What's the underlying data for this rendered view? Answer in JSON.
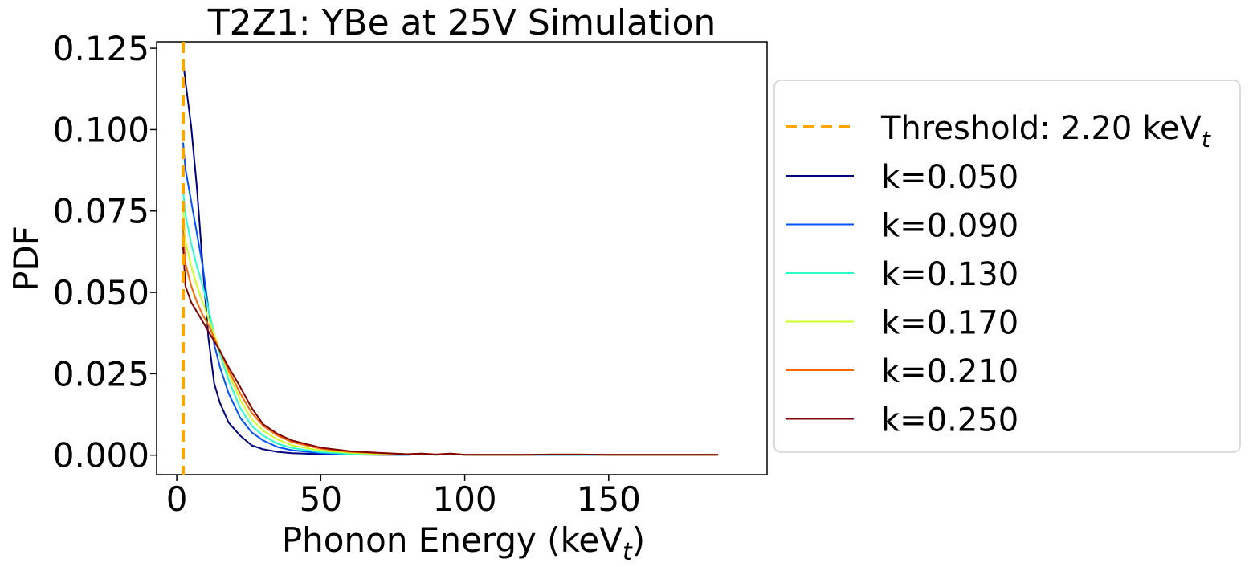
{
  "chart_data": {
    "type": "line",
    "title": "T2Z1: YBe at 25V Simulation",
    "xlabel_main": "Phonon Energy (keV",
    "xlabel_sub": "t",
    "xlabel_end": ")",
    "ylabel": "PDF",
    "xlim": [
      -7,
      205
    ],
    "ylim": [
      -0.006,
      0.127
    ],
    "xticks": [
      0,
      50,
      100,
      150
    ],
    "xtick_labels": [
      "0",
      "50",
      "100",
      "150"
    ],
    "yticks": [
      0.0,
      0.025,
      0.05,
      0.075,
      0.1,
      0.125
    ],
    "ytick_labels": [
      "0.000",
      "0.025",
      "0.050",
      "0.075",
      "0.100",
      "0.125"
    ],
    "grid": false,
    "legend_placement": "outside-right",
    "threshold": {
      "x": 2.2,
      "color": "#ffa500",
      "label_main": "Threshold: 2.20 keV",
      "label_sub": "t",
      "style": "dashed"
    },
    "series": [
      {
        "name": "k=0.050",
        "color": "#00007f",
        "x": [
          2.2,
          3,
          5,
          7,
          9,
          11,
          13,
          15,
          18,
          22,
          26,
          30,
          35,
          40,
          50,
          60,
          70,
          80,
          85,
          90,
          95,
          100,
          110,
          120,
          130,
          140,
          150,
          160,
          170,
          180,
          188
        ],
        "y": [
          0.121,
          0.115,
          0.101,
          0.082,
          0.058,
          0.036,
          0.022,
          0.016,
          0.01,
          0.006,
          0.003,
          0.0018,
          0.001,
          0.0006,
          0.0003,
          0.0002,
          0.0001,
          0.0001,
          0.0004,
          0.0001,
          0.0004,
          0.0001,
          0.0001,
          0.0001,
          0.0001,
          0.0001,
          0.0001,
          0.0001,
          0.0001,
          0.0001,
          0.0001
        ]
      },
      {
        "name": "k=0.090",
        "color": "#0051ff",
        "x": [
          2.2,
          3,
          5,
          7,
          9,
          11,
          13,
          15,
          18,
          22,
          26,
          30,
          35,
          40,
          50,
          60,
          70,
          80,
          85,
          90,
          95,
          100,
          110,
          120,
          130,
          140,
          150,
          160,
          170,
          180,
          188
        ],
        "y": [
          0.096,
          0.088,
          0.078,
          0.068,
          0.058,
          0.045,
          0.034,
          0.027,
          0.019,
          0.0115,
          0.007,
          0.0045,
          0.0025,
          0.0015,
          0.0006,
          0.0003,
          0.0002,
          0.0001,
          0.0004,
          0.0001,
          0.0004,
          0.0001,
          0.0001,
          0.0001,
          0.0001,
          0.0001,
          0.0001,
          0.0001,
          0.0001,
          0.0001,
          0.0001
        ]
      },
      {
        "name": "k=0.130",
        "color": "#29ffce",
        "x": [
          2.2,
          3,
          5,
          7,
          9,
          11,
          13,
          15,
          18,
          22,
          26,
          30,
          35,
          40,
          50,
          60,
          70,
          80,
          85,
          90,
          95,
          100,
          110,
          120,
          130,
          140,
          150,
          160,
          170,
          180,
          188
        ],
        "y": [
          0.081,
          0.074,
          0.065,
          0.058,
          0.052,
          0.045,
          0.037,
          0.031,
          0.023,
          0.0145,
          0.009,
          0.006,
          0.0035,
          0.0022,
          0.0009,
          0.0004,
          0.0002,
          0.0001,
          0.0004,
          0.0001,
          0.0004,
          0.0001,
          0.0001,
          0.0001,
          0.0001,
          0.0001,
          0.0001,
          0.0001,
          0.0001,
          0.0001,
          0.0001
        ]
      },
      {
        "name": "k=0.170",
        "color": "#ceff29",
        "x": [
          2.2,
          3,
          5,
          7,
          9,
          11,
          13,
          15,
          18,
          22,
          26,
          30,
          35,
          40,
          50,
          60,
          70,
          80,
          85,
          90,
          95,
          100,
          110,
          120,
          130,
          140,
          150,
          160,
          170,
          180,
          188
        ],
        "y": [
          0.075,
          0.066,
          0.058,
          0.052,
          0.047,
          0.042,
          0.037,
          0.032,
          0.025,
          0.017,
          0.011,
          0.0075,
          0.0048,
          0.003,
          0.0014,
          0.0007,
          0.0004,
          0.0002,
          0.0005,
          0.0001,
          0.0005,
          0.0001,
          0.0001,
          0.0001,
          0.0002,
          0.0002,
          0.0001,
          0.0001,
          0.0001,
          0.0001,
          0.0001
        ]
      },
      {
        "name": "k=0.210",
        "color": "#ff6800",
        "x": [
          2.2,
          3,
          5,
          7,
          9,
          11,
          13,
          15,
          18,
          22,
          26,
          30,
          35,
          40,
          50,
          60,
          70,
          80,
          85,
          90,
          95,
          100,
          110,
          120,
          130,
          140,
          150,
          160,
          170,
          180,
          188
        ],
        "y": [
          0.069,
          0.059,
          0.052,
          0.047,
          0.043,
          0.04,
          0.036,
          0.032,
          0.026,
          0.019,
          0.013,
          0.009,
          0.006,
          0.004,
          0.002,
          0.001,
          0.0006,
          0.0003,
          0.0005,
          0.0002,
          0.0005,
          0.0001,
          0.0001,
          0.0001,
          0.0002,
          0.0002,
          0.0001,
          0.0001,
          0.0001,
          0.0001,
          0.0001
        ]
      },
      {
        "name": "k=0.250",
        "color": "#7f0000",
        "x": [
          2.2,
          3,
          5,
          7,
          9,
          11,
          13,
          15,
          18,
          22,
          26,
          30,
          35,
          40,
          50,
          60,
          70,
          80,
          85,
          90,
          95,
          100,
          110,
          120,
          130,
          140,
          150,
          160,
          170,
          180,
          188
        ],
        "y": [
          0.064,
          0.052,
          0.047,
          0.044,
          0.041,
          0.038,
          0.035,
          0.032,
          0.027,
          0.021,
          0.0145,
          0.0095,
          0.0065,
          0.0045,
          0.0023,
          0.0012,
          0.0007,
          0.0003,
          0.0005,
          0.0002,
          0.0005,
          0.0001,
          0.0001,
          0.0001,
          0.0002,
          0.0002,
          0.0001,
          0.0001,
          0.0001,
          0.0001,
          0.0001
        ]
      }
    ]
  }
}
